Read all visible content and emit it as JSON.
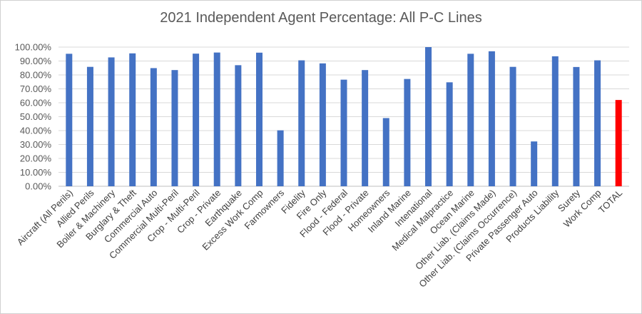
{
  "chart_data": {
    "type": "bar",
    "title": "2021 Independent  Agent Percentage: All P-C Lines",
    "xlabel": "",
    "ylabel": "",
    "ylim": [
      0,
      100
    ],
    "yticks": [
      0,
      10,
      20,
      30,
      40,
      50,
      60,
      70,
      80,
      90,
      100
    ],
    "ytick_labels": [
      "0.00%",
      "10.00%",
      "20.00%",
      "30.00%",
      "40.00%",
      "50.00%",
      "60.00%",
      "70.00%",
      "80.00%",
      "90.00%",
      "100.00%"
    ],
    "grid": true,
    "legend": "none",
    "bar_color": "#4472C4",
    "highlight_color": "#FF0000",
    "highlight_category": "TOTAL",
    "categories": [
      "Aircraft (All Perils)",
      "Allied Perils",
      "Boiler & Machinery",
      "Burglary & Theft",
      "Commercial Auto",
      "Commercial Multi-Peril",
      "Crop - Multi-Peril",
      "Crop - Private",
      "Earthquake",
      "Excess Work Comp",
      "Farmowners",
      "Fidelity",
      "Fire Only",
      "Flood - Federal",
      "Flood - Private",
      "Homeowners",
      "Inland Marine",
      "Intenational",
      "Medical Malpractice",
      "Ocean Marine",
      "Other Liab. (Claims Made)",
      "Other Liab. (Claims Occurrence)",
      "Private Passenger Auto",
      "Products Liability",
      "Surety",
      "Work Comp",
      "TOTAL"
    ],
    "values": [
      95.2,
      85.8,
      92.6,
      95.5,
      84.9,
      83.5,
      95.3,
      96.1,
      87.0,
      96.0,
      40.2,
      90.5,
      88.3,
      76.6,
      83.5,
      49.0,
      77.1,
      100.0,
      74.7,
      95.2,
      97.0,
      85.8,
      32.2,
      93.4,
      85.7,
      90.5,
      62.0
    ]
  }
}
